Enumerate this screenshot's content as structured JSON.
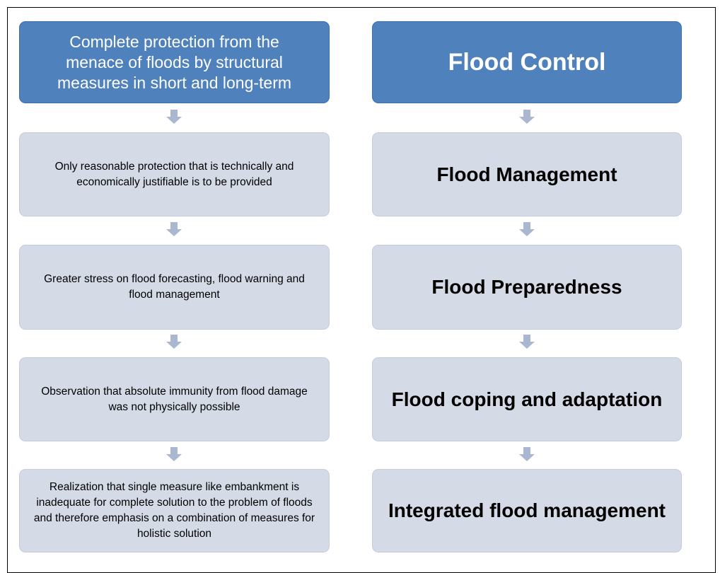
{
  "left": [
    "Complete protection from the menace of floods by structural measures in short and long-term",
    "Only reasonable protection that is technically and economically justifiable is to be provided",
    "Greater stress on flood forecasting, flood warning and flood management",
    "Observation that absolute immunity from flood damage was not physically possible",
    "Realization that  single measure like embankment is inadequate for complete  solution to the problem of floods and therefore emphasis on a combination of measures  for holistic solution"
  ],
  "right": [
    "Flood Control",
    "Flood Management",
    "Flood Preparedness",
    "Flood coping and adaptation",
    "Integrated flood management"
  ]
}
